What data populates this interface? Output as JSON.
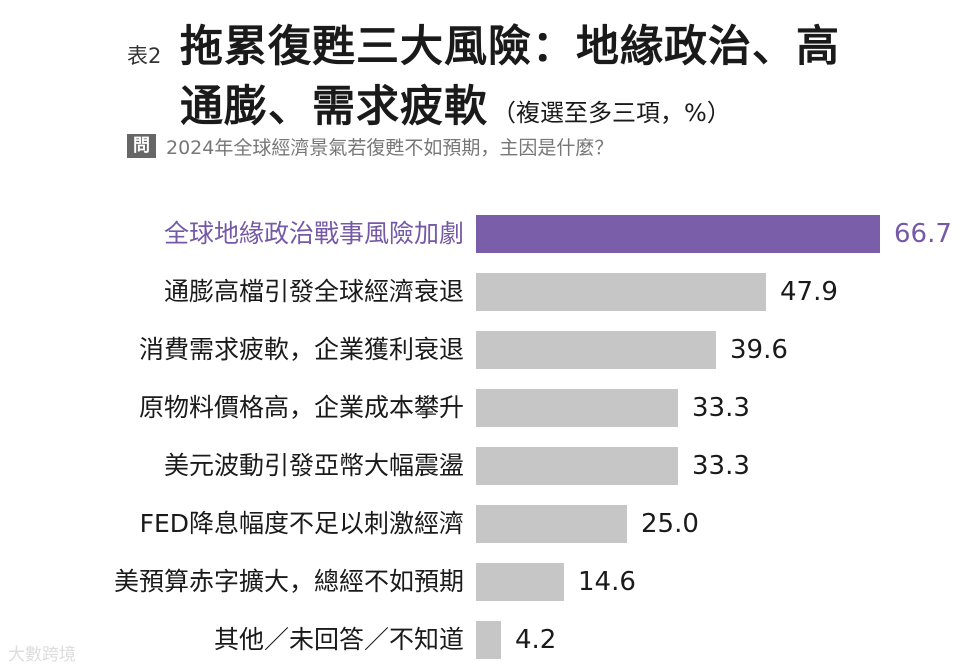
{
  "header": {
    "table_no": "表2",
    "title_line1": "拖累復甦三大風險：地緣政治、高",
    "title_line2": "通膨、需求疲軟",
    "title_note": "（複選至多三項，%）",
    "question_badge": "問",
    "question_text": "2024年全球經濟景氣若復甦不如預期，主因是什麼？"
  },
  "watermark": "大數跨境",
  "colors": {
    "highlight_bar": "#7b5ea9",
    "highlight_text": "#7559a6",
    "bar": "#c6c6c6"
  },
  "chart_data": {
    "type": "bar",
    "orientation": "horizontal",
    "title": "拖累復甦三大風險：地緣政治、高通膨、需求疲軟",
    "subtitle": "（複選至多三項，%）",
    "xlim": [
      0,
      66.7
    ],
    "grid": false,
    "highlight_index": 0,
    "categories": [
      "全球地緣政治戰事風險加劇",
      "通膨高檔引發全球經濟衰退",
      "消費需求疲軟，企業獲利衰退",
      "原物料價格高，企業成本攀升",
      "美元波動引發亞幣大幅震盪",
      "FED降息幅度不足以刺激經濟",
      "美預算赤字擴大，總經不如預期",
      "其他／未回答／不知道"
    ],
    "values": [
      66.7,
      47.9,
      39.6,
      33.3,
      33.3,
      25.0,
      14.6,
      4.2
    ],
    "value_labels": [
      "66.7",
      "47.9",
      "39.6",
      "33.3",
      "33.3",
      "25.0",
      "14.6",
      "4.2"
    ]
  }
}
